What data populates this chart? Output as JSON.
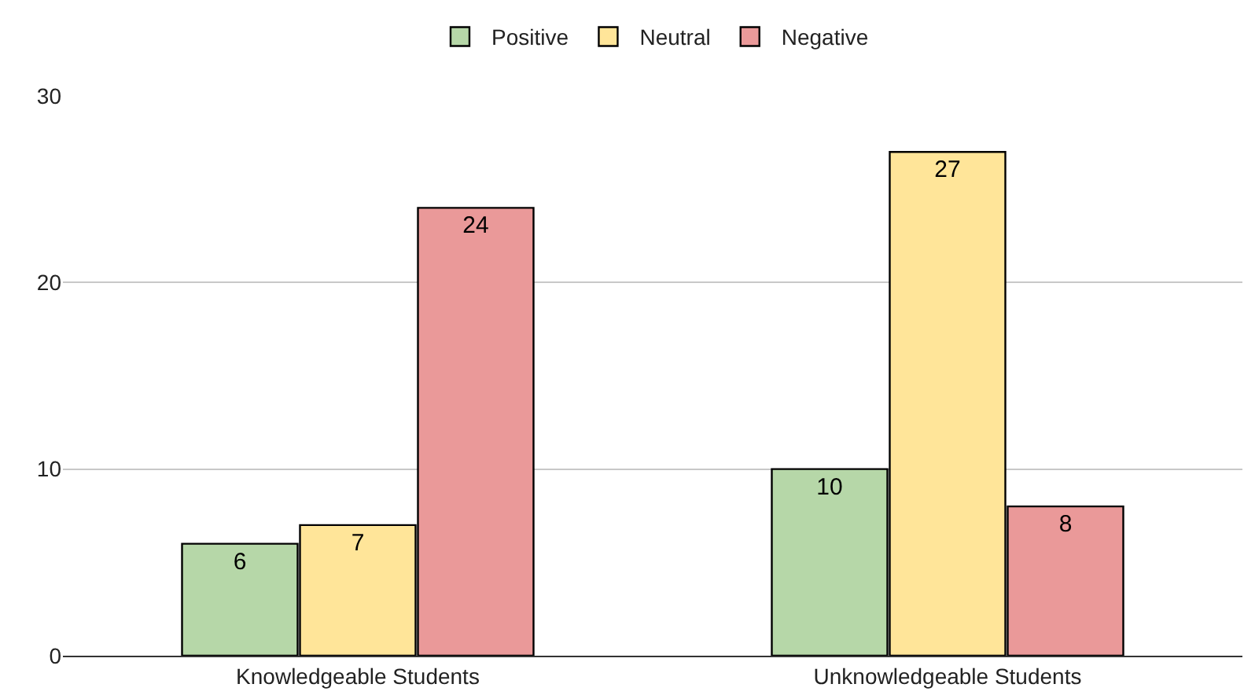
{
  "chart_data": {
    "type": "bar",
    "categories": [
      "Knowledgeable Students",
      "Unknowledgeable Students"
    ],
    "series": [
      {
        "name": "Positive",
        "color": "#b6d7a8",
        "values": [
          6,
          10
        ]
      },
      {
        "name": "Neutral",
        "color": "#ffe599",
        "values": [
          7,
          27
        ]
      },
      {
        "name": "Negative",
        "color": "#ea9999",
        "values": [
          24,
          8
        ]
      }
    ],
    "ylim": [
      0,
      30
    ],
    "yticks": [
      0,
      10,
      20,
      30
    ],
    "grid": "y",
    "legend": "top",
    "data_labels": true
  }
}
